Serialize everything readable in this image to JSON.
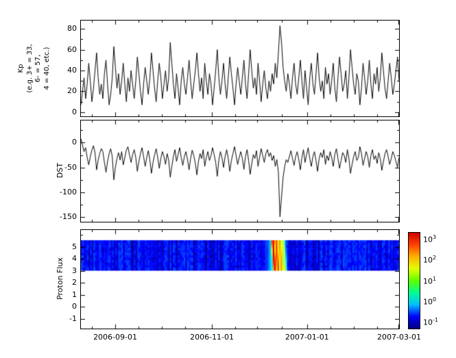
{
  "figure": {
    "bg": "#ffffff"
  },
  "x_axis": {
    "range_days": [
      0,
      204
    ],
    "ticks": [
      {
        "day": 22,
        "label": "2006-09-01"
      },
      {
        "day": 84,
        "label": "2006-11-01"
      },
      {
        "day": 145,
        "label": "2007-01-01"
      },
      {
        "day": 204,
        "label": "2007-03-01"
      }
    ],
    "minor_days": [
      7,
      37,
      52,
      67,
      99,
      113,
      129,
      160,
      175,
      190
    ]
  },
  "chart_data": [
    {
      "type": "line",
      "name": "kp-index",
      "ylabel_lines": [
        "Kp",
        "(e.g. 3+ = 33,",
        "6- = 57,",
        "4 = 40, etc.)"
      ],
      "ylim": [
        -4,
        88
      ],
      "yticks": [
        80,
        60,
        40,
        20,
        0
      ],
      "yticks_minor": [
        70,
        50,
        30,
        10
      ],
      "line_color": "#000000",
      "values": [
        7,
        20,
        33,
        13,
        27,
        47,
        30,
        10,
        23,
        40,
        57,
        33,
        17,
        27,
        13,
        37,
        50,
        27,
        7,
        17,
        33,
        63,
        43,
        23,
        37,
        17,
        30,
        47,
        27,
        10,
        33,
        20,
        40,
        27,
        13,
        30,
        53,
        37,
        20,
        7,
        27,
        43,
        30,
        17,
        33,
        57,
        40,
        23,
        10,
        30,
        47,
        33,
        13,
        27,
        40,
        20,
        33,
        67,
        47,
        27,
        13,
        37,
        23,
        7,
        30,
        43,
        27,
        17,
        33,
        50,
        30,
        13,
        27,
        40,
        57,
        37,
        20,
        33,
        13,
        47,
        30,
        17,
        37,
        27,
        7,
        23,
        40,
        60,
        33,
        17,
        30,
        47,
        27,
        13,
        33,
        53,
        37,
        23,
        7,
        27,
        43,
        30,
        17,
        33,
        50,
        27,
        13,
        37,
        60,
        40,
        23,
        33,
        17,
        47,
        30,
        10,
        27,
        40,
        23,
        13,
        30,
        20,
        37,
        27,
        47,
        33,
        57,
        83,
        67,
        43,
        30,
        20,
        37,
        27,
        13,
        33,
        47,
        27,
        17,
        33,
        50,
        30,
        13,
        40,
        23,
        7,
        33,
        47,
        27,
        17,
        37,
        57,
        33,
        20,
        30,
        13,
        43,
        27,
        37,
        17,
        30,
        47,
        23,
        10,
        33,
        53,
        37,
        20,
        27,
        40,
        13,
        33,
        60,
        43,
        27,
        17,
        37,
        30,
        7,
        23,
        47,
        33,
        17,
        30,
        50,
        27,
        13,
        37,
        27,
        43,
        20,
        33,
        57,
        40,
        23,
        13,
        30,
        47,
        33,
        17,
        27,
        40,
        53,
        30
      ]
    },
    {
      "type": "line",
      "name": "dst-index",
      "ylabel": "DST",
      "ylim": [
        -160,
        45
      ],
      "yticks": [
        0,
        -50,
        -100,
        -150
      ],
      "yticks_minor": [
        25,
        -25,
        -75,
        -125
      ],
      "line_color": "#000000",
      "values": [
        8,
        -5,
        -18,
        -10,
        -30,
        -45,
        -28,
        -15,
        -6,
        -20,
        -55,
        -35,
        -22,
        -12,
        -18,
        -40,
        -60,
        -38,
        -22,
        -12,
        -28,
        -75,
        -50,
        -32,
        -20,
        -35,
        -18,
        -45,
        -30,
        -15,
        -8,
        -25,
        -40,
        -24,
        -14,
        -30,
        -58,
        -38,
        -22,
        -10,
        -28,
        -48,
        -30,
        -16,
        -35,
        -62,
        -40,
        -25,
        -12,
        -30,
        -52,
        -32,
        -18,
        -28,
        -44,
        -22,
        -35,
        -70,
        -48,
        -28,
        -14,
        -38,
        -24,
        -10,
        -30,
        -46,
        -28,
        -18,
        -34,
        -55,
        -32,
        -15,
        -26,
        -42,
        -65,
        -38,
        -22,
        -32,
        -14,
        -48,
        -30,
        -18,
        -36,
        -26,
        -10,
        -24,
        -40,
        -68,
        -35,
        -18,
        -30,
        -50,
        -28,
        -14,
        -32,
        -58,
        -36,
        -22,
        -8,
        -26,
        -44,
        -30,
        -18,
        -32,
        -54,
        -28,
        -14,
        -36,
        -64,
        -42,
        -24,
        -32,
        -16,
        -48,
        -30,
        -12,
        -26,
        -40,
        -22,
        -14,
        -28,
        -20,
        -36,
        -26,
        -48,
        -34,
        -60,
        -150,
        -110,
        -70,
        -48,
        -34,
        -40,
        -28,
        -16,
        -32,
        -46,
        -28,
        -18,
        -34,
        -55,
        -30,
        -14,
        -40,
        -24,
        -10,
        -32,
        -48,
        -28,
        -18,
        -36,
        -58,
        -32,
        -20,
        -30,
        -14,
        -44,
        -26,
        -36,
        -18,
        -30,
        -48,
        -24,
        -12,
        -32,
        -52,
        -36,
        -20,
        -26,
        -40,
        -14,
        -32,
        -62,
        -44,
        -28,
        -18,
        -36,
        -30,
        -8,
        -22,
        -46,
        -32,
        -18,
        -28,
        -50,
        -26,
        -14,
        -34,
        -26,
        -42,
        -20,
        -32,
        -56,
        -38,
        -22,
        -14,
        -28,
        -44,
        -32,
        -18,
        -26,
        -38,
        -50,
        -30
      ]
    },
    {
      "type": "heatmap",
      "name": "proton-flux-spectrogram",
      "ylabel": "Proton Flux",
      "ylim": [
        -1.8,
        6.4
      ],
      "yticks": [
        5,
        4,
        3,
        2,
        1,
        0,
        -1
      ],
      "yticks_minor": [
        6
      ],
      "band_y": [
        3.05,
        5.55
      ],
      "baseline_flux": 0.15,
      "clim": [
        0.1,
        1000
      ],
      "scale": "log",
      "event": {
        "envelope": {
          "center_day": 125.8,
          "width_days": 3.2,
          "peak": 8
        },
        "stripes": [
          {
            "day": 123.2,
            "peak": 900,
            "width_days": 0.55
          },
          {
            "day": 125.3,
            "peak": 350,
            "width_days": 0.6
          },
          {
            "day": 127.6,
            "peak": 120,
            "width_days": 0.7
          },
          {
            "day": 129.6,
            "peak": 25,
            "width_days": 0.8
          }
        ],
        "tilt_days_per_band": 1.2
      }
    }
  ],
  "colorbar": {
    "tick_exponents": [
      3,
      2,
      1,
      0,
      -1
    ],
    "clim_log": [
      -1.25,
      3.35
    ],
    "gradient": [
      "#00007f",
      "#0000ff",
      "#00bfff",
      "#00ff90",
      "#60ff00",
      "#e0ff00",
      "#ffb000",
      "#ff4000",
      "#d00000"
    ]
  }
}
